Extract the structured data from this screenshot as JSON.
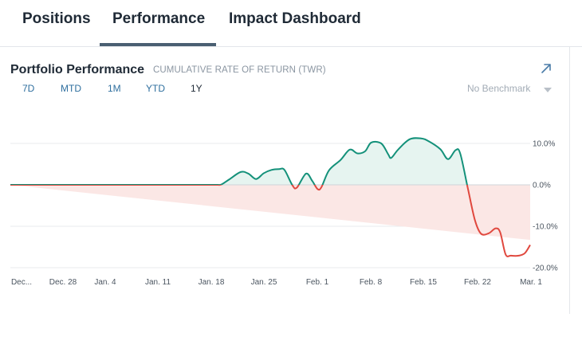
{
  "tabs": [
    {
      "label": "Positions",
      "active": false
    },
    {
      "label": "Performance",
      "active": true
    },
    {
      "label": "Impact Dashboard",
      "active": false
    }
  ],
  "card": {
    "title": "Portfolio Performance",
    "subtitle": "CUMULATIVE RATE OF RETURN (TWR)",
    "expand_icon": "arrow-up-right-icon"
  },
  "ranges": [
    "7D",
    "MTD",
    "1M",
    "YTD",
    "1Y"
  ],
  "active_range": "1Y",
  "benchmark": {
    "label": "No Benchmark",
    "icon": "caret-down-icon"
  },
  "colors": {
    "positive": "#14917a",
    "positive_fill": "#e6f4f0",
    "negative": "#e0483e",
    "negative_fill": "#fbe7e5"
  },
  "chart_data": {
    "type": "area",
    "title": "Portfolio Performance",
    "ylabel": "",
    "xlabel": "",
    "ylim": [
      -20,
      12
    ],
    "y_ticks": [
      "10.0%",
      "0.0%",
      "-10.0%",
      "-20.0%"
    ],
    "x_ticks": [
      "Dec...",
      "Dec. 28",
      "Jan. 4",
      "Jan. 11",
      "Jan. 18",
      "Jan. 25",
      "Feb. 1",
      "Feb. 8",
      "Feb. 15",
      "Feb. 22",
      "Mar. 1"
    ],
    "grid": true,
    "series": [
      {
        "values": [
          [
            0,
            0
          ],
          [
            1,
            0
          ],
          [
            2,
            0
          ],
          [
            3,
            0
          ],
          [
            4,
            0
          ],
          [
            5,
            0
          ],
          [
            6,
            0
          ],
          [
            7,
            0
          ],
          [
            8,
            0
          ],
          [
            9,
            0
          ],
          [
            10,
            0
          ],
          [
            11,
            0
          ],
          [
            12,
            0
          ],
          [
            13,
            0
          ],
          [
            14,
            0
          ],
          [
            15,
            0
          ],
          [
            16,
            0
          ],
          [
            17,
            0
          ],
          [
            18,
            0
          ],
          [
            19,
            0
          ],
          [
            20,
            0
          ],
          [
            21,
            0
          ],
          [
            22,
            0
          ],
          [
            23,
            0
          ],
          [
            24,
            0
          ],
          [
            25,
            0
          ],
          [
            26,
            0
          ],
          [
            27,
            0
          ],
          [
            27.5,
            0.1
          ],
          [
            28.5,
            1.3
          ],
          [
            30,
            3.1
          ],
          [
            31,
            2.7
          ],
          [
            32,
            1.4
          ],
          [
            33,
            2.8
          ],
          [
            34,
            3.6
          ],
          [
            35,
            3.8
          ],
          [
            35.7,
            3.6
          ],
          [
            36.7,
            0.0
          ],
          [
            37.3,
            -0.7
          ],
          [
            38.5,
            2.7
          ],
          [
            39.3,
            1.0
          ],
          [
            40,
            -1.0
          ],
          [
            40.5,
            -0.6
          ],
          [
            41.5,
            3.5
          ],
          [
            43,
            6.0
          ],
          [
            44.2,
            8.5
          ],
          [
            45.2,
            7.6
          ],
          [
            46.2,
            8.1
          ],
          [
            47,
            10.2
          ],
          [
            48.3,
            10.0
          ],
          [
            49.2,
            7.4
          ],
          [
            49.6,
            6.5
          ],
          [
            50.5,
            8.5
          ],
          [
            52,
            11.0
          ],
          [
            53.5,
            11.2
          ],
          [
            54.5,
            10.5
          ],
          [
            56,
            8.6
          ],
          [
            57,
            6.2
          ],
          [
            58,
            8.4
          ],
          [
            58.6,
            7.5
          ],
          [
            59.6,
            -1.0
          ],
          [
            60.5,
            -8.5
          ],
          [
            61.3,
            -11.8
          ],
          [
            62.3,
            -11.7
          ],
          [
            63.2,
            -10.5
          ],
          [
            63.8,
            -11.5
          ],
          [
            64.5,
            -16.8
          ],
          [
            65.2,
            -17.1
          ],
          [
            66.2,
            -17.1
          ],
          [
            67,
            -16.5
          ],
          [
            67.7,
            -14.5
          ]
        ]
      }
    ],
    "tick_days": [
      0,
      4,
      11,
      18,
      25,
      32,
      39,
      46,
      53,
      60,
      67
    ],
    "annotations": []
  }
}
